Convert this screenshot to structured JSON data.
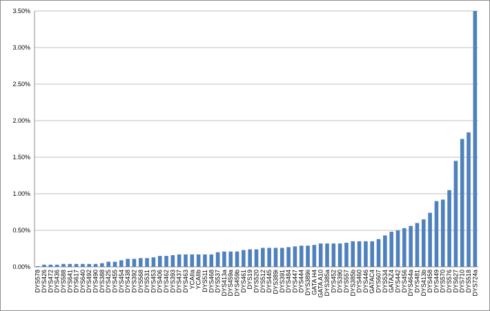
{
  "chart_data": {
    "type": "bar",
    "categories": [
      "DYS578",
      "DYS426",
      "DYS472",
      "DYS436",
      "DYS588",
      "DYS641",
      "DYS617",
      "DYS640",
      "DYS492",
      "DYS490",
      "DYS388",
      "DYS425",
      "DYS455",
      "DYS454",
      "DYS438",
      "DYS392",
      "DYS568",
      "DYS531",
      "DYS453",
      "DYS406",
      "DYS462",
      "DYS393",
      "DYS437",
      "DYS463",
      "YCAIIa",
      "YCAIIb",
      "DYS511",
      "DYS468",
      "DYS537",
      "DYS413a",
      "DYS459a",
      "DYS459b",
      "DYS461",
      "DYS19",
      "DYS520",
      "DYS512",
      "DYS445",
      "DYS389i",
      "DYS391",
      "DYS484",
      "DYS447",
      "DYS444",
      "DYS389ii",
      "GATA H4",
      "GATA A10",
      "DYS385a",
      "DYS452",
      "DYS390",
      "DYS557",
      "DYS385b",
      "DYS460",
      "DYS446",
      "GATAC4",
      "DYS607",
      "DYS534",
      "GATAZ4",
      "DYS442",
      "DYS456",
      "DYS464a",
      "DYS481",
      "DYS413b",
      "DYS458",
      "DYS449",
      "DYS570",
      "DYS576",
      "DYS627",
      "DYS710",
      "DYS518",
      "DYS724a"
    ],
    "values": [
      0.01,
      0.03,
      0.03,
      0.03,
      0.04,
      0.04,
      0.04,
      0.04,
      0.04,
      0.04,
      0.05,
      0.07,
      0.07,
      0.09,
      0.11,
      0.11,
      0.12,
      0.12,
      0.13,
      0.15,
      0.15,
      0.16,
      0.17,
      0.17,
      0.17,
      0.17,
      0.17,
      0.17,
      0.2,
      0.21,
      0.21,
      0.21,
      0.23,
      0.24,
      0.24,
      0.26,
      0.26,
      0.26,
      0.26,
      0.27,
      0.28,
      0.29,
      0.29,
      0.3,
      0.32,
      0.32,
      0.32,
      0.32,
      0.33,
      0.35,
      0.35,
      0.35,
      0.35,
      0.38,
      0.43,
      0.48,
      0.5,
      0.53,
      0.56,
      0.6,
      0.65,
      0.74,
      0.9,
      0.92,
      1.05,
      1.45,
      1.75,
      1.84,
      3.5
    ],
    "color": "#4f81bd",
    "ylim": [
      0,
      3.5
    ],
    "yticks": [
      {
        "value": 0,
        "label": "0.00%"
      },
      {
        "value": 0.5,
        "label": "0.50%"
      },
      {
        "value": 1,
        "label": "1.00%"
      },
      {
        "value": 1.5,
        "label": "1.50%"
      },
      {
        "value": 2,
        "label": "2.00%"
      },
      {
        "value": 2.5,
        "label": "2.50%"
      },
      {
        "value": 3,
        "label": "3.00%"
      },
      {
        "value": 3.5,
        "label": "3.50%"
      }
    ],
    "grid": true
  }
}
